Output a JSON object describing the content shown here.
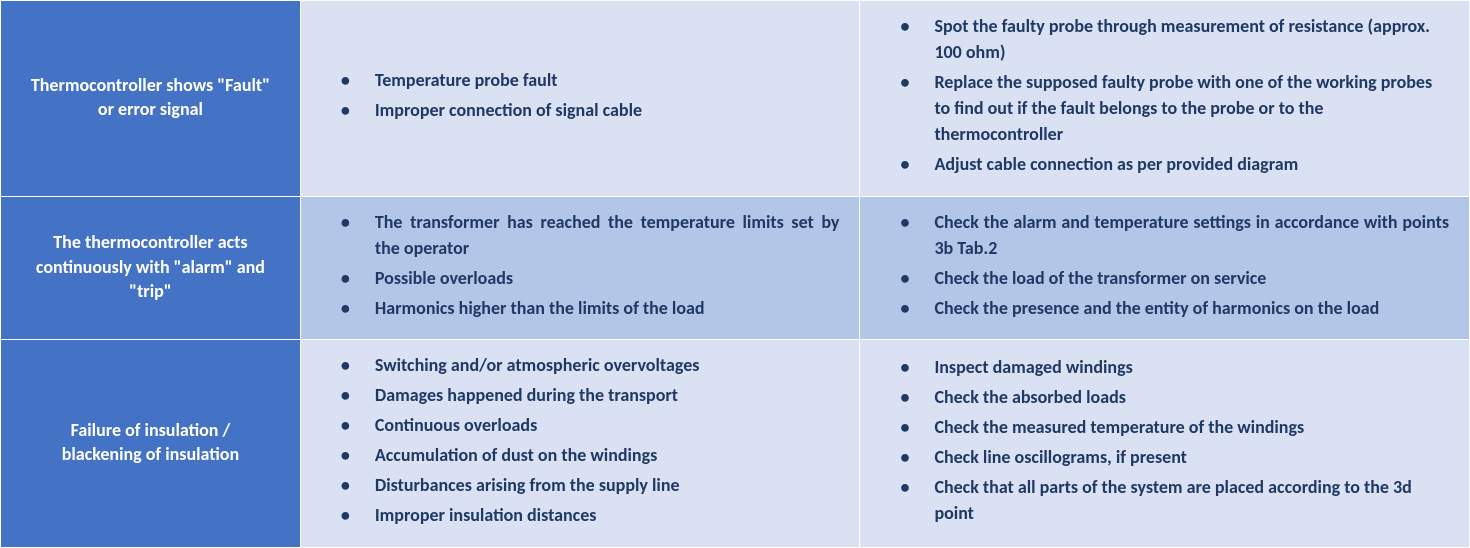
{
  "colors": {
    "header_bg_1": "#4472c4",
    "header_bg_2": "#4472c4",
    "header_bg_3": "#4472c4",
    "cell_bg_row1": "#d9e1f2",
    "cell_bg_row2": "#b4c6e7",
    "cell_bg_row3": "#d9e1f2",
    "text_color": "#1f3864",
    "header_text_color": "#ffffff"
  },
  "rows": [
    {
      "issue": "Thermocontroller shows \"Fault\" or error signal",
      "causes": [
        "Temperature probe fault",
        "Improper connection of signal cable"
      ],
      "actions": [
        "Spot the faulty probe through measurement of resistance (approx. 100 ohm)",
        "Replace the supposed faulty probe with one of the working probes to find out if the fault belongs to the probe or to the thermocontroller",
        "Adjust cable connection as per provided diagram"
      ],
      "causes_justify": false,
      "actions_justify": false
    },
    {
      "issue": "The thermocontroller acts continuously with \"alarm\" and \"trip\"",
      "causes": [
        "The transformer has reached the temperature limits set by the operator",
        "Possible overloads",
        "Harmonics higher than the limits of the load"
      ],
      "actions": [
        "Check the alarm and temperature settings in accordance with points 3b Tab.2",
        "Check the load of the transformer on service",
        "Check the presence and the entity of harmonics on the load"
      ],
      "causes_justify": true,
      "actions_justify": true
    },
    {
      "issue": "Failure of insulation / blackening of insulation",
      "causes": [
        "Switching and/or atmospheric overvoltages",
        "Damages happened during the transport",
        "Continuous overloads",
        "Accumulation of dust on the windings",
        "Disturbances arising from the supply line",
        "Improper insulation distances"
      ],
      "actions": [
        "Inspect damaged windings",
        "Check the absorbed loads",
        "Check the measured temperature of the windings",
        "Check line oscillograms, if present",
        "Check that all parts of the system are placed according to the 3d point"
      ],
      "causes_justify": false,
      "actions_justify": false
    }
  ]
}
